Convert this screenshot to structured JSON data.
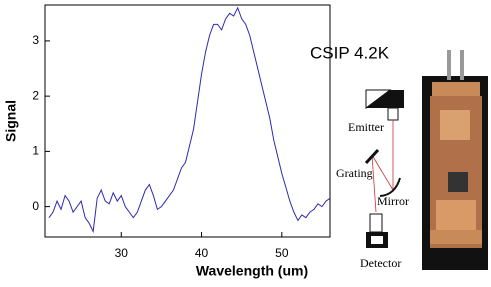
{
  "chart_data": {
    "type": "line",
    "x_label": "Wavelength (um)",
    "y_label": "Signal",
    "x": [
      21,
      21.5,
      22,
      22.5,
      23,
      23.5,
      24,
      24.5,
      25,
      25.5,
      26,
      26.5,
      27,
      27.5,
      28,
      28.5,
      29,
      29.5,
      30,
      30.5,
      31,
      31.5,
      32,
      32.5,
      33,
      33.5,
      34,
      34.5,
      35,
      35.5,
      36,
      36.5,
      37,
      37.5,
      38,
      38.5,
      39,
      39.5,
      40,
      40.5,
      41,
      41.5,
      42,
      42.5,
      43,
      43.5,
      44,
      44.5,
      45,
      45.5,
      46,
      46.5,
      47,
      47.5,
      48,
      48.5,
      49,
      49.5,
      50,
      50.5,
      51,
      51.5,
      52,
      52.5,
      53,
      53.5,
      54,
      54.5,
      55,
      55.5,
      56
    ],
    "series": [
      {
        "color": "#2b2bb0",
        "values": [
          -0.2,
          -0.1,
          0.1,
          -0.05,
          0.2,
          0.1,
          -0.1,
          0.0,
          0.1,
          -0.2,
          -0.3,
          -0.45,
          0.15,
          0.3,
          0.1,
          0.05,
          0.25,
          0.1,
          0.2,
          0.0,
          -0.1,
          -0.2,
          -0.1,
          0.1,
          0.3,
          0.4,
          0.2,
          -0.05,
          0.0,
          0.1,
          0.2,
          0.3,
          0.5,
          0.7,
          0.8,
          1.1,
          1.4,
          1.9,
          2.4,
          2.8,
          3.1,
          3.3,
          3.3,
          3.2,
          3.4,
          3.5,
          3.45,
          3.6,
          3.4,
          3.3,
          3.1,
          2.8,
          2.5,
          2.2,
          1.9,
          1.6,
          1.2,
          0.9,
          0.6,
          0.35,
          0.1,
          -0.1,
          -0.25,
          -0.15,
          -0.2,
          -0.1,
          -0.05,
          0.05,
          0.0,
          0.1,
          0.15
        ]
      }
    ],
    "xlim": [
      20.5,
      56
    ],
    "ylim": [
      -0.55,
      3.65
    ],
    "xticks": [
      30,
      40,
      50
    ],
    "yticks": [
      0,
      1,
      2,
      3
    ],
    "annotations": [
      "CSIP  4.2K",
      "Emitter",
      "Grating",
      "Mirror",
      "Detector"
    ]
  }
}
